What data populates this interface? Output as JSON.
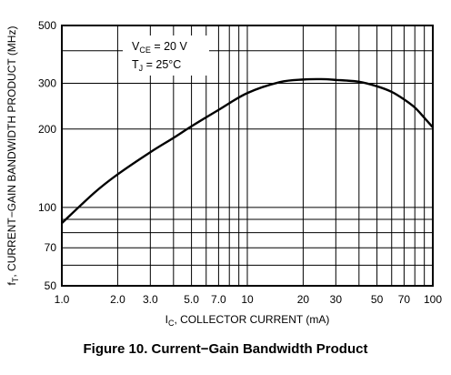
{
  "chart_data": {
    "type": "line",
    "xscale": "log",
    "yscale": "log",
    "xlim": [
      1.0,
      100
    ],
    "ylim": [
      50,
      500
    ],
    "grid": true,
    "xlabel": {
      "main": "I",
      "sub": "C",
      "rest": ", COLLECTOR CURRENT (mA)"
    },
    "ylabel": {
      "main": "f",
      "sub": "T",
      "rest": ", CURRENT−GAIN BANDWIDTH PRODUCT (MHz)"
    },
    "x_ticks": [
      {
        "value": 1.0,
        "label": "1.0"
      },
      {
        "value": 2.0,
        "label": "2.0"
      },
      {
        "value": 3.0,
        "label": "3.0"
      },
      {
        "value": 5.0,
        "label": "5.0"
      },
      {
        "value": 7.0,
        "label": "7.0"
      },
      {
        "value": 10,
        "label": "10"
      },
      {
        "value": 20,
        "label": "20"
      },
      {
        "value": 30,
        "label": "30"
      },
      {
        "value": 50,
        "label": "50"
      },
      {
        "value": 70,
        "label": "70"
      },
      {
        "value": 100,
        "label": "100"
      }
    ],
    "y_ticks": [
      {
        "value": 50,
        "label": "50"
      },
      {
        "value": 70,
        "label": "70"
      },
      {
        "value": 100,
        "label": "100"
      },
      {
        "value": 200,
        "label": "200"
      },
      {
        "value": 300,
        "label": "300"
      },
      {
        "value": 500,
        "label": "500"
      }
    ],
    "x_grid": [
      1,
      2,
      3,
      4,
      5,
      6,
      7,
      8,
      9,
      10,
      20,
      30,
      40,
      50,
      60,
      70,
      80,
      90,
      100
    ],
    "y_grid": [
      50,
      60,
      70,
      80,
      90,
      100,
      200,
      300,
      400,
      500
    ],
    "annotations": [
      {
        "main": "V",
        "sub": "CE",
        "rest": " = 20 V"
      },
      {
        "main": "T",
        "sub": "J",
        "rest": " = 25°C"
      }
    ],
    "series": [
      {
        "x": [
          1.0,
          1.5,
          2.0,
          3.0,
          4.0,
          5.0,
          7.0,
          10,
          15,
          20,
          25,
          30,
          40,
          50,
          60,
          70,
          80,
          90,
          100
        ],
        "y": [
          87,
          114,
          134,
          163,
          185,
          205,
          237,
          275,
          303,
          310,
          311,
          309,
          304,
          292,
          278,
          260,
          242,
          221,
          203
        ]
      }
    ],
    "caption": "Figure 10. Current−Gain Bandwidth Product"
  }
}
